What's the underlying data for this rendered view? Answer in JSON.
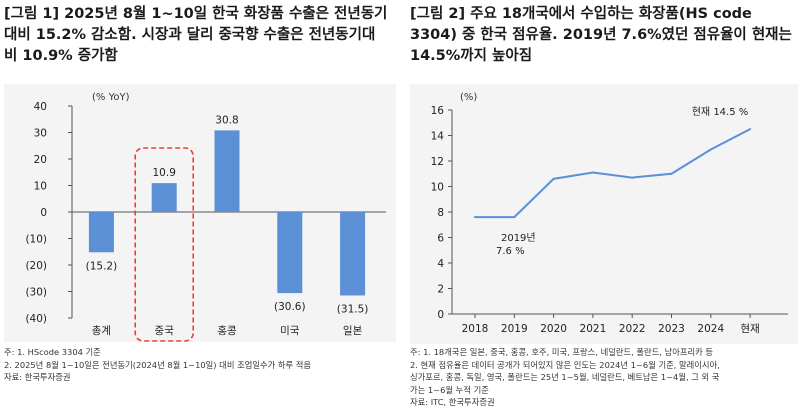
{
  "panel1": {
    "title_lines": [
      "[그림 1] 2025년 8월 1~10일 한국 화장품 수출은 전년동기",
      "대비 15.2% 감소함. 시장과 달리 중국향 수출은 전년동기대",
      "비 10.9% 증가함"
    ],
    "notes": [
      "주: 1. HScode 3304 기준",
      "2. 2025년 8월 1~10일은 전년동기(2024년 8월 1~10일) 대비 조업일수가 하루 적음",
      "자료: 한국투자증권"
    ]
  },
  "panel2": {
    "title_lines": [
      "[그림 2]  주요 18개국에서 수입하는 화장품(HS code",
      "3304) 중 한국 점유율. 2019년 7.6%였던 점유율이 현재는",
      "14.5%까지 높아짐"
    ],
    "notes": [
      "주: 1. 18개국은 일본, 중국, 홍콩, 호주, 미국, 프랑스, 네덜란드, 폴란드, 남아프리카 등",
      "2. 현재 점유율은 데이터 공개가 되어있지 않은 인도는 2024년 1~6월 기준, 말레이시아,",
      "싱가포르, 홍콩, 독일, 영국, 폴란드는 25년 1~5월, 네덜란드, 베트남은 1~4월, 그 외 국",
      "가는 1~6월 누적 기준",
      "자료: ITC, 한국투자증권"
    ]
  },
  "chart_data": [
    {
      "type": "bar",
      "unit_label": "(% YoY)",
      "categories": [
        "총계",
        "중국",
        "홍콩",
        "미국",
        "일본"
      ],
      "values": [
        -15.2,
        10.9,
        30.8,
        -30.6,
        -31.5
      ],
      "value_labels": [
        "(15.2)",
        "10.9",
        "30.8",
        "(30.6)",
        "(31.5)"
      ],
      "ylim": [
        -40,
        40
      ],
      "yticks": [
        40,
        30,
        20,
        10,
        0,
        -10,
        -20,
        -30,
        -40
      ],
      "ytick_labels": [
        "40",
        "30",
        "20",
        "10",
        "0",
        "(10)",
        "(20)",
        "(30)",
        "(40)"
      ],
      "highlight_category": "중국",
      "bar_color": "#5b8fd6",
      "highlight_color": "#e8403a",
      "grid": false
    },
    {
      "type": "line",
      "unit_label": "(%)",
      "x": [
        2018,
        2019,
        2020,
        2021,
        2022,
        2023,
        2024,
        "현재"
      ],
      "x_labels": [
        "2018",
        "2019",
        "2020",
        "2021",
        "2022",
        "2023",
        "2024",
        "현재"
      ],
      "values": [
        7.6,
        7.6,
        10.6,
        11.1,
        10.7,
        11.0,
        12.9,
        14.5
      ],
      "ylim": [
        0,
        16
      ],
      "yticks": [
        16,
        14,
        12,
        10,
        8,
        6,
        4,
        2,
        0
      ],
      "annotations": [
        {
          "lines": [
            "2019년",
            "7.6 %"
          ]
        },
        {
          "lines": [
            "현재 14.5 %"
          ]
        }
      ],
      "line_color": "#5b8fd6",
      "grid": false
    }
  ]
}
